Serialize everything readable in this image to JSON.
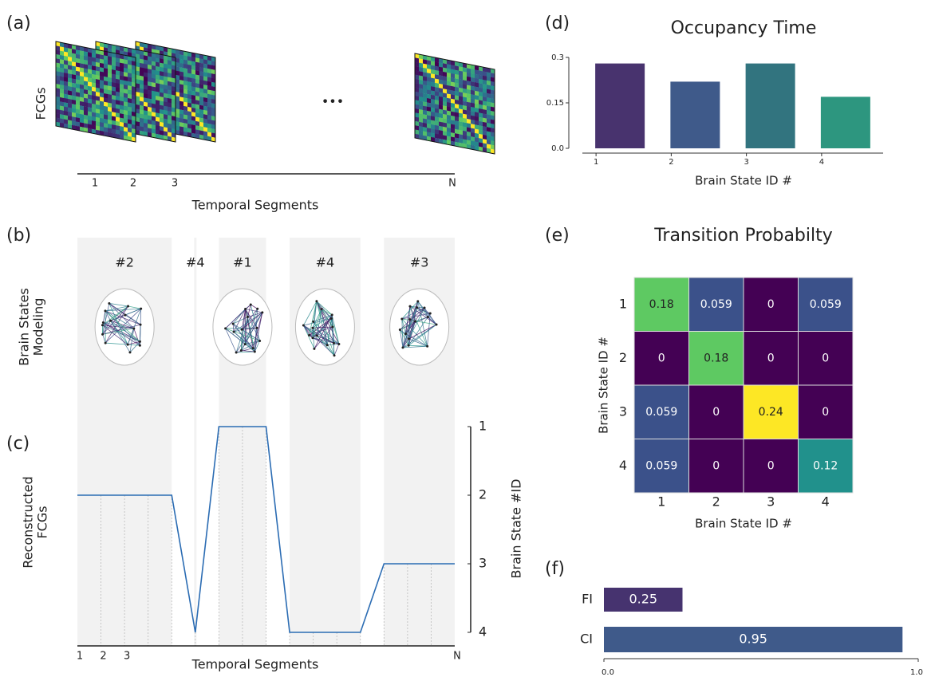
{
  "panel_labels": [
    "(a)",
    "(b)",
    "(c)",
    "(d)",
    "(e)",
    "(f)"
  ],
  "fcg_stack": {
    "ylabel": "FCGs",
    "ellipsis": "•••",
    "ticks": [
      "1",
      "2",
      "3",
      "N"
    ],
    "xlabel": "Temporal Segments"
  },
  "brain_states": {
    "ylabel": [
      "Brain States",
      "Modeling"
    ],
    "labels": [
      "#2",
      "#4",
      "#1",
      "#4",
      "#3"
    ]
  },
  "chart_data": [
    {
      "type": "line",
      "ylabel": [
        "Reconstructed",
        "FCGs"
      ],
      "y_axis_label": "Brain State #ID",
      "xlabel": "Temporal Segments",
      "categories": [
        "1",
        "2",
        "3",
        null,
        null,
        null,
        null,
        null,
        null,
        null,
        null,
        null,
        null,
        null,
        null,
        null,
        "N"
      ],
      "values": [
        2,
        2,
        2,
        2,
        2,
        4,
        1,
        1,
        1,
        4,
        4,
        4,
        4,
        3,
        3,
        3,
        3
      ],
      "color": "#2b6cb3",
      "ylim": [
        4,
        1
      ],
      "yticks": [
        1,
        2,
        3,
        4
      ]
    },
    {
      "type": "bar",
      "title": "Occupancy Time",
      "xlabel": "Brain State ID #",
      "categories": [
        "1",
        "2",
        "3",
        "4"
      ],
      "values": [
        0.28,
        0.22,
        0.28,
        0.17
      ],
      "colors": [
        "#48336e",
        "#3f5a8a",
        "#32747f",
        "#2d967f"
      ],
      "ylim": [
        0,
        0.3
      ],
      "yticks": [
        {
          "value": 0,
          "label": "0.0"
        },
        0.15,
        0.3
      ]
    },
    {
      "type": "heatmap",
      "title": "Transition Probabilty",
      "xlabel": "Brain State ID #",
      "ylabel": "Brain State ID #",
      "x_categories": [
        "1",
        "2",
        "3",
        "4"
      ],
      "y_categories": [
        "1",
        "2",
        "3",
        "4"
      ],
      "values": [
        [
          0.18,
          0.059,
          0,
          0.059
        ],
        [
          0,
          0.18,
          0,
          0
        ],
        [
          0.059,
          0,
          0.24,
          0
        ],
        [
          0.059,
          0,
          0,
          0.12
        ]
      ],
      "colormap": "viridis"
    },
    {
      "type": "hbar",
      "categories": [
        "FI",
        "CI"
      ],
      "values": [
        0.25,
        0.95
      ],
      "colors": [
        "#46336f",
        "#3f5a8a"
      ],
      "xlim": [
        0,
        1
      ],
      "xticks": [
        {
          "value": 0,
          "label": "0.0"
        },
        {
          "value": 1,
          "label": "1.0"
        }
      ]
    }
  ]
}
